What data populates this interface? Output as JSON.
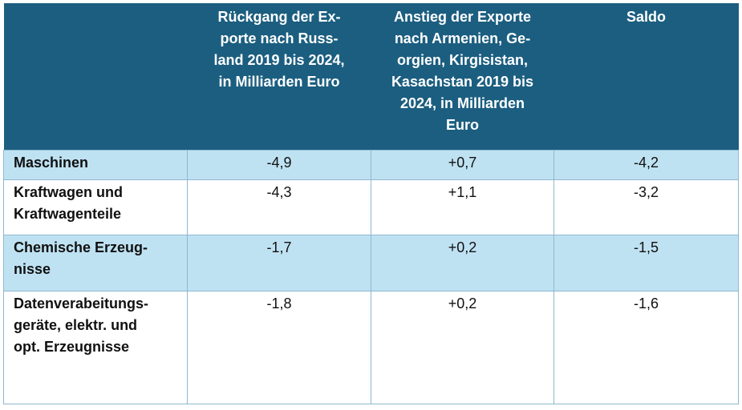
{
  "table": {
    "headers": [
      "",
      "Rückgang der Ex-\nporte nach Russ-\nland 2019 bis 2024,\nin Milliarden Euro",
      "Anstieg der Exporte\nnach Armenien, Ge-\norgien, Kirgisistan,\nKasachstan 2019 bis\n2024, in Milliarden\nEuro",
      "Saldo"
    ],
    "rows": [
      {
        "label": "Maschinen",
        "values": [
          "-4,9",
          "+0,7",
          "-4,2"
        ]
      },
      {
        "label": "Kraftwagen und\nKraftwagenteile",
        "values": [
          "-4,3",
          "+1,1",
          "-3,2"
        ]
      },
      {
        "label": "Chemische Erzeug-\nnisse",
        "values": [
          "-1,7",
          "+0,2",
          "-1,5"
        ]
      },
      {
        "label": "Datenverabeitungs-\ngeräte, elektr. und\nopt. Erzeugnisse",
        "values": [
          "-1,8",
          "+0,2",
          "-1,6"
        ]
      }
    ]
  },
  "colors": {
    "header_bg": "#1b5e80",
    "header_text": "#ffffff",
    "shaded_row_bg": "#bfe2f3",
    "plain_row_bg": "#ffffff",
    "grid_line": "#8fb7d0"
  }
}
